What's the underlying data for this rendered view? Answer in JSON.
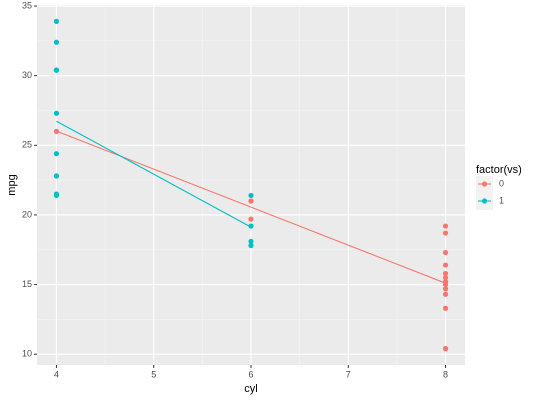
{
  "chart_data": {
    "type": "scatter",
    "x_label": "cyl",
    "y_label": "mpg",
    "xlim": [
      3.8,
      8.2
    ],
    "xticks": [
      4,
      5,
      6,
      7,
      8
    ],
    "ylim": [
      9.225,
      35.075
    ],
    "yticks": [
      10,
      15,
      20,
      25,
      30,
      35
    ],
    "grid": true,
    "legend_title": "factor(vs)",
    "legend_position": "right",
    "series": [
      {
        "name": "0",
        "color": "#F8766D",
        "x": [
          4,
          6,
          6,
          6,
          8,
          8,
          8,
          8,
          8,
          8,
          8,
          8,
          8,
          8,
          8,
          8,
          8,
          8
        ],
        "values": [
          26.0,
          21.0,
          21.0,
          19.7,
          18.7,
          14.3,
          16.4,
          17.3,
          15.2,
          10.4,
          10.4,
          14.7,
          15.5,
          15.2,
          13.3,
          19.2,
          15.8,
          15.0
        ],
        "fit": {
          "x": [
            4,
            8
          ],
          "values": [
            26.02,
            15.1
          ]
        }
      },
      {
        "name": "1",
        "color": "#00BFC4",
        "x": [
          4,
          4,
          4,
          4,
          4,
          4,
          4,
          4,
          4,
          4,
          6,
          6,
          6,
          6
        ],
        "values": [
          22.8,
          24.4,
          22.8,
          32.4,
          30.4,
          33.9,
          21.5,
          27.3,
          30.4,
          21.4,
          21.4,
          18.1,
          19.2,
          17.8
        ],
        "fit": {
          "x": [
            4,
            6
          ],
          "values": [
            26.73,
            19.125
          ]
        }
      }
    ]
  }
}
